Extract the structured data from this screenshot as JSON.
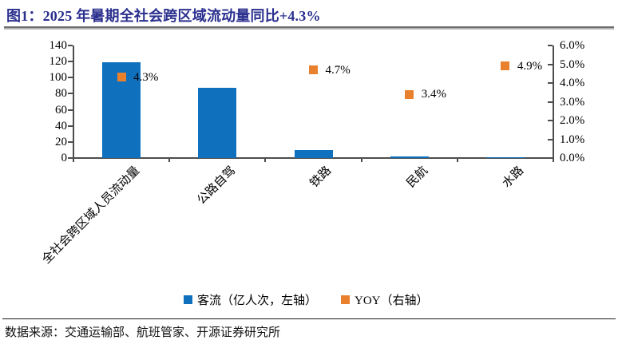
{
  "header": {
    "title": "图1：2025 年暑期全社会跨区域流动量同比+4.3%",
    "title_color": "#2A2F8E"
  },
  "legend": [
    {
      "label": "客流（亿人次，左轴）",
      "color": "#0F70BE"
    },
    {
      "label": "YOY（右轴）",
      "color": "#E8802E"
    }
  ],
  "footer": {
    "source": "数据来源：交通运输部、航班管家、开源证券研究所"
  },
  "chart_data": {
    "type": "bar",
    "title": "图1：2025 年暑期全社会跨区域流动量同比+4.3%",
    "categories": [
      "全社会跨区域人员流动量",
      "公路自驾",
      "铁路",
      "民航",
      "水路"
    ],
    "series": [
      {
        "name": "客流（亿人次，左轴）",
        "type": "bar",
        "axis": "left",
        "color": "#0F70BE",
        "values": [
          119,
          87,
          10,
          1.5,
          0.4
        ]
      },
      {
        "name": "YOY（右轴）",
        "type": "scatter",
        "marker": "square",
        "axis": "right",
        "color": "#E8802E",
        "values": [
          4.3,
          null,
          4.7,
          3.4,
          4.9
        ],
        "point_labels": [
          "4.3%",
          "",
          "4.7%",
          "3.4%",
          "4.9%"
        ]
      }
    ],
    "left_axis": {
      "min": 0,
      "max": 140,
      "ticks": [
        0,
        20,
        40,
        60,
        80,
        100,
        120,
        140
      ]
    },
    "right_axis": {
      "min": 0,
      "max": 6,
      "tick_labels": [
        "0.0%",
        "1.0%",
        "2.0%",
        "3.0%",
        "4.0%",
        "5.0%",
        "6.0%"
      ]
    },
    "grid": false,
    "legend_position": "bottom"
  }
}
